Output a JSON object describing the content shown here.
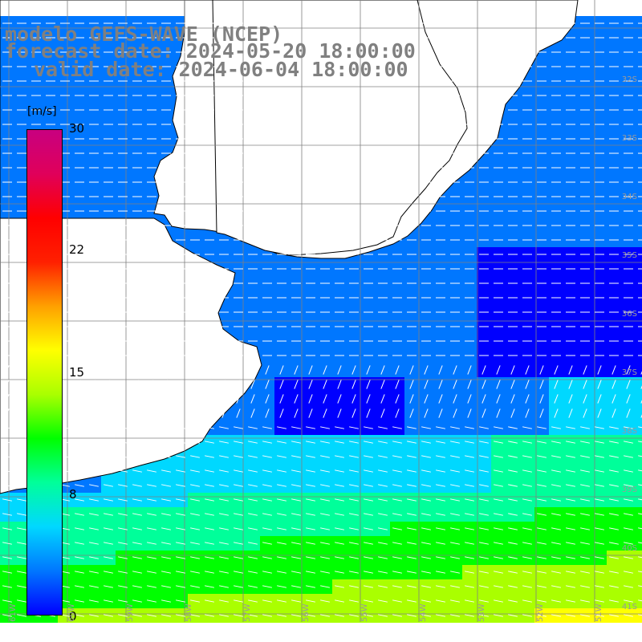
{
  "header": {
    "line1": "modelo GEFS-WAVE (NCEP)",
    "line2": "forecast date: 2024-05-20 18:00:00",
    "line3": "valid date: 2024-06-04 18:00:00"
  },
  "legend": {
    "unit": "[m/s]",
    "ticks": [
      "30",
      "22",
      "15",
      "8",
      "0"
    ],
    "range": [
      0,
      30
    ],
    "colors": [
      "#0000ff",
      "#0077ff",
      "#00d8ff",
      "#00ff9a",
      "#00ff00",
      "#aaff00",
      "#ffff00",
      "#ffa000",
      "#ff2000",
      "#ff0000",
      "#e0005a",
      "#c80080"
    ]
  },
  "map": {
    "lat_labels": [
      "32S",
      "33S",
      "34S",
      "35S",
      "36S",
      "37S",
      "38S",
      "39S",
      "40S",
      "41S"
    ],
    "lon_labels": [
      "61W",
      "60W",
      "59W",
      "58W",
      "57W",
      "56W",
      "55W",
      "54W",
      "53W",
      "52W",
      "51W"
    ],
    "land_color": "#ffffff",
    "coast_color": "#000000",
    "grid_color": "#808080",
    "arrow_color": "#ffffff"
  }
}
